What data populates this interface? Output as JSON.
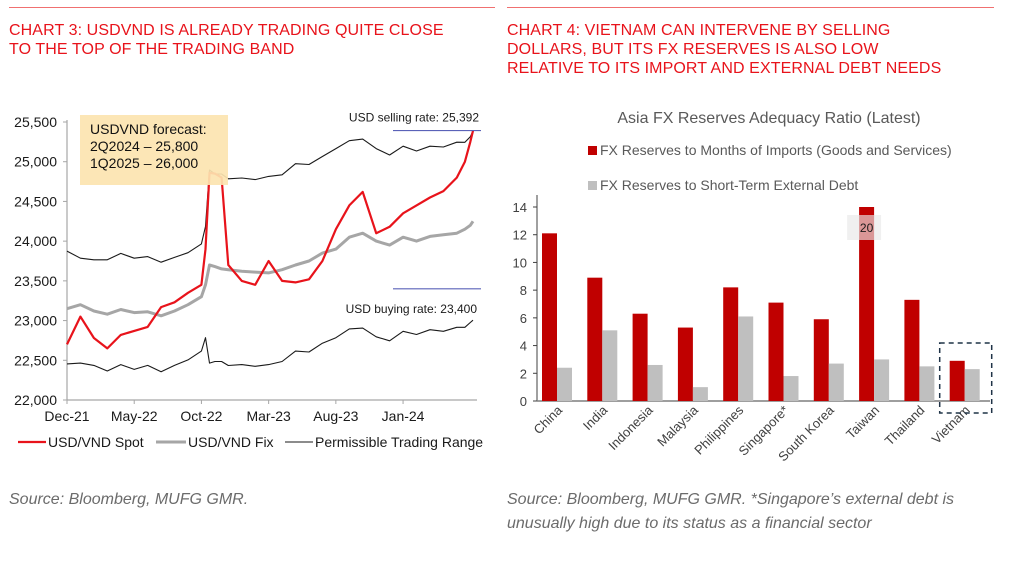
{
  "left_panel": {
    "title_line1": "CHART 3: USDVND IS ALREADY TRADING QUITE CLOSE",
    "title_line2": "TO THE TOP OF THE TRADING BAND",
    "source": "Source: Bloomberg, MUFG GMR."
  },
  "right_panel": {
    "title_line1": "CHART 4: VIETNAM CAN INTERVENE BY SELLING",
    "title_line2": "DOLLARS, BUT ITS FX RESERVES IS ALSO LOW",
    "title_line3": "RELATIVE TO ITS IMPORT AND EXTERNAL DEBT NEEDS",
    "source_line1": "Source: Bloomberg, MUFG GMR. *Singapore’s external debt is",
    "source_line2": "unusually high due to its status as a financial sector"
  },
  "colors": {
    "title_red": "#e8131b",
    "spot": "#e8131b",
    "fix": "#a6a6a6",
    "band": "#1a1a1a",
    "rate_line": "#5a62b8",
    "bar_red": "#c00000",
    "bar_grey": "#bfbfbf",
    "forecast_box": "#fce4b0"
  },
  "chart_data": [
    {
      "type": "line",
      "title": "",
      "xlabel": "",
      "ylabel": "",
      "ylim": [
        22000,
        25500
      ],
      "yticks": [
        22000,
        22500,
        23000,
        23500,
        24000,
        24500,
        25000,
        25500
      ],
      "ytick_labels": [
        "22,000",
        "22,500",
        "23,000",
        "23,500",
        "24,000",
        "24,500",
        "25,000",
        "25,500"
      ],
      "xtick_labels": [
        "Dec-21",
        "May-22",
        "Oct-22",
        "Mar-23",
        "Aug-23",
        "Jan-24"
      ],
      "x_months_from_dec21": [
        0,
        1,
        2,
        3,
        4,
        5,
        6,
        7,
        8,
        9,
        10,
        10.3,
        10.6,
        11,
        11.5,
        12,
        13,
        14,
        15,
        16,
        17,
        18,
        19,
        20,
        21,
        22,
        23,
        24,
        25,
        26,
        27,
        28,
        29,
        29.6,
        30,
        30.2
      ],
      "xlim_months": [
        0,
        30.5
      ],
      "series": [
        {
          "name": "USD/VND Spot",
          "values": [
            22700,
            23050,
            22780,
            22650,
            22820,
            22870,
            22920,
            23170,
            23230,
            23350,
            23450,
            23900,
            24860,
            24850,
            24800,
            23700,
            23500,
            23450,
            23750,
            23500,
            23480,
            23520,
            23750,
            24150,
            24450,
            24620,
            24100,
            24180,
            24350,
            24450,
            24550,
            24630,
            24800,
            25000,
            25250,
            25390
          ]
        },
        {
          "name": "USD/VND Fix",
          "values": [
            23150,
            23200,
            23120,
            23080,
            23140,
            23100,
            23110,
            23060,
            23120,
            23200,
            23300,
            23450,
            23700,
            23680,
            23650,
            23640,
            23620,
            23610,
            23600,
            23640,
            23700,
            23750,
            23850,
            23900,
            24050,
            24100,
            24000,
            23950,
            24050,
            24000,
            24060,
            24080,
            24100,
            24150,
            24200,
            24250
          ]
        },
        {
          "name": "Permissible Trading Range (upper)",
          "values": [
            23860,
            23800,
            23750,
            23780,
            23830,
            23800,
            23790,
            23750,
            23780,
            23870,
            23950,
            24200,
            24880,
            24860,
            24830,
            24800,
            24780,
            24790,
            24800,
            24850,
            24960,
            24980,
            25050,
            25180,
            25250,
            25300,
            25150,
            25100,
            25180,
            25150,
            25180,
            25200,
            25230,
            25260,
            25300,
            25400
          ]
        },
        {
          "name": "Permissible Trading Range (lower)",
          "values": [
            22440,
            22480,
            22420,
            22380,
            22430,
            22400,
            22420,
            22370,
            22420,
            22520,
            22600,
            22800,
            22450,
            22500,
            22470,
            22450,
            22430,
            22440,
            22430,
            22500,
            22600,
            22620,
            22700,
            22800,
            22880,
            22920,
            22780,
            22760,
            22850,
            22840,
            22870,
            22880,
            22900,
            22930,
            22960,
            23020
          ]
        }
      ],
      "legend": [
        "USD/VND Spot",
        "USD/VND Fix",
        "Permissible Trading Range"
      ],
      "legend_position": "bottom",
      "annotations": {
        "forecast_line1": "USDVND forecast:",
        "forecast_line2": "2Q2024 – 25,800",
        "forecast_line3": "1Q2025 – 26,000",
        "selling_rate_label": "USD selling rate: 25,392",
        "selling_rate_value": 25392,
        "buying_rate_label": "USD buying rate: 23,400",
        "buying_rate_value": 23400
      },
      "grid": false
    },
    {
      "type": "bar",
      "title": "Asia FX Reserves Adequacy Ratio (Latest)",
      "xlabel": "",
      "ylabel": "",
      "ylim": [
        0,
        14
      ],
      "yticks": [
        0,
        2,
        4,
        6,
        8,
        10,
        12,
        14
      ],
      "categories": [
        "China",
        "India",
        "Indonesia",
        "Malaysia",
        "Philippines",
        "Singapore*",
        "South Korea",
        "Taiwan",
        "Thailand",
        "Vietnam"
      ],
      "series": [
        {
          "name": "FX Reserves to Months of Imports (Goods and Services)",
          "values": [
            12.1,
            8.9,
            6.3,
            5.3,
            8.2,
            7.1,
            5.9,
            20,
            7.3,
            2.9
          ]
        },
        {
          "name": "FX Reserves to Short-Term External Debt",
          "values": [
            2.4,
            5.1,
            2.6,
            1.0,
            6.1,
            1.8,
            2.7,
            3.0,
            2.5,
            2.3
          ]
        }
      ],
      "clipped_label": "20",
      "highlighted_category": "Vietnam",
      "legend_position": "top",
      "grid": false
    }
  ]
}
